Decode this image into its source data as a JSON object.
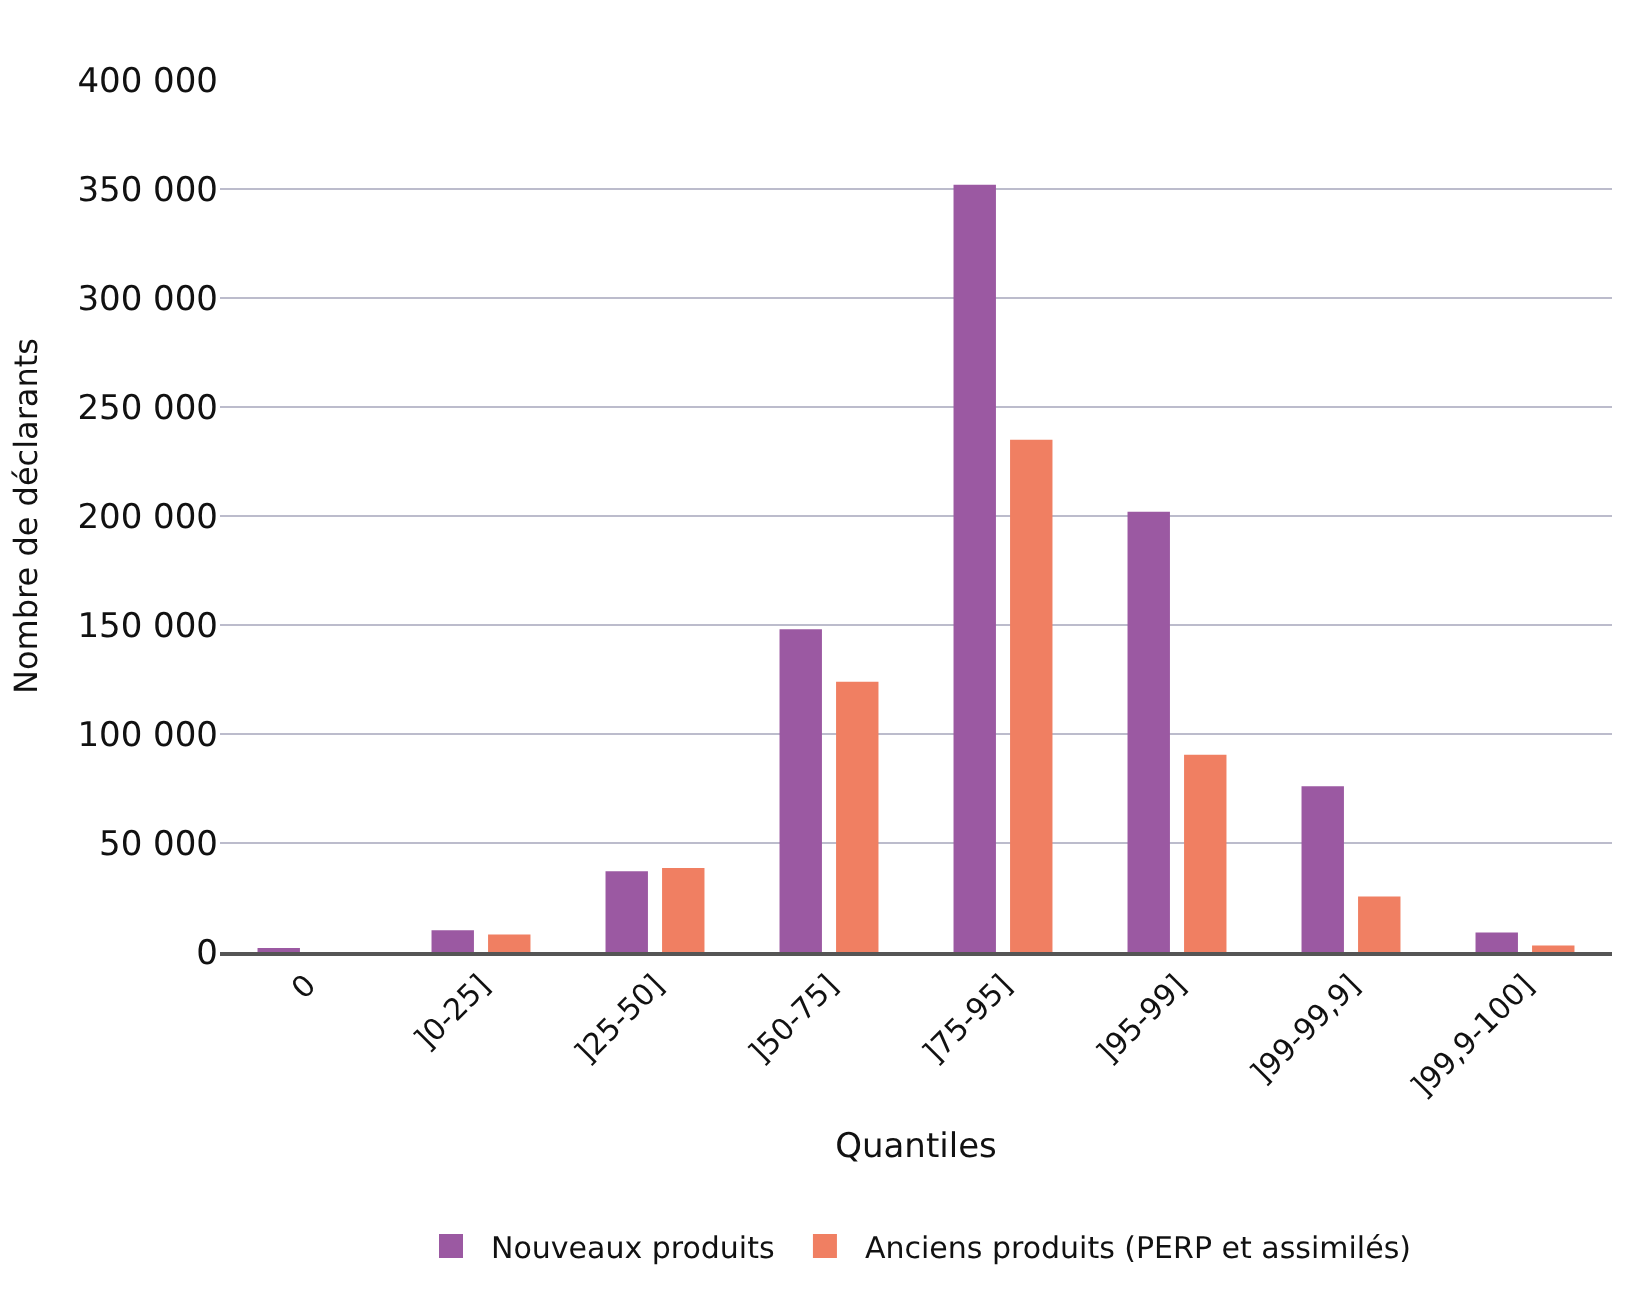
{
  "chart_data": {
    "type": "bar",
    "xlabel": "Quantiles",
    "ylabel": "Nombre de déclarants",
    "categories": [
      "0",
      "]0-25]",
      "]25-50]",
      "]50-75]",
      "]75-95]",
      "]95-99]",
      "]99-99,9]",
      "]99,9-100]"
    ],
    "series": [
      {
        "name": "Nouveaux produits",
        "color": "#9b59a2",
        "values": [
          1000,
          10000,
          37000,
          148000,
          352000,
          202000,
          76000,
          9000
        ]
      },
      {
        "name": "Anciens produits (PERP et assimilés)",
        "color": "#f07f62",
        "values": [
          0,
          8000,
          38500,
          124000,
          235000,
          90500,
          25500,
          3000
        ]
      }
    ],
    "ylim": [
      0,
      400000
    ],
    "yticks": [
      {
        "value": 0,
        "label": "0"
      },
      {
        "value": 50000,
        "label": "50 000"
      },
      {
        "value": 100000,
        "label": "100 000"
      },
      {
        "value": 150000,
        "label": "150 000"
      },
      {
        "value": 200000,
        "label": "200 000"
      },
      {
        "value": 250000,
        "label": "250 000"
      },
      {
        "value": 300000,
        "label": "300 000"
      },
      {
        "value": 350000,
        "label": "350 000"
      },
      {
        "value": 400000,
        "label": "400 000"
      }
    ],
    "grid": "y",
    "legend": "bottom"
  }
}
